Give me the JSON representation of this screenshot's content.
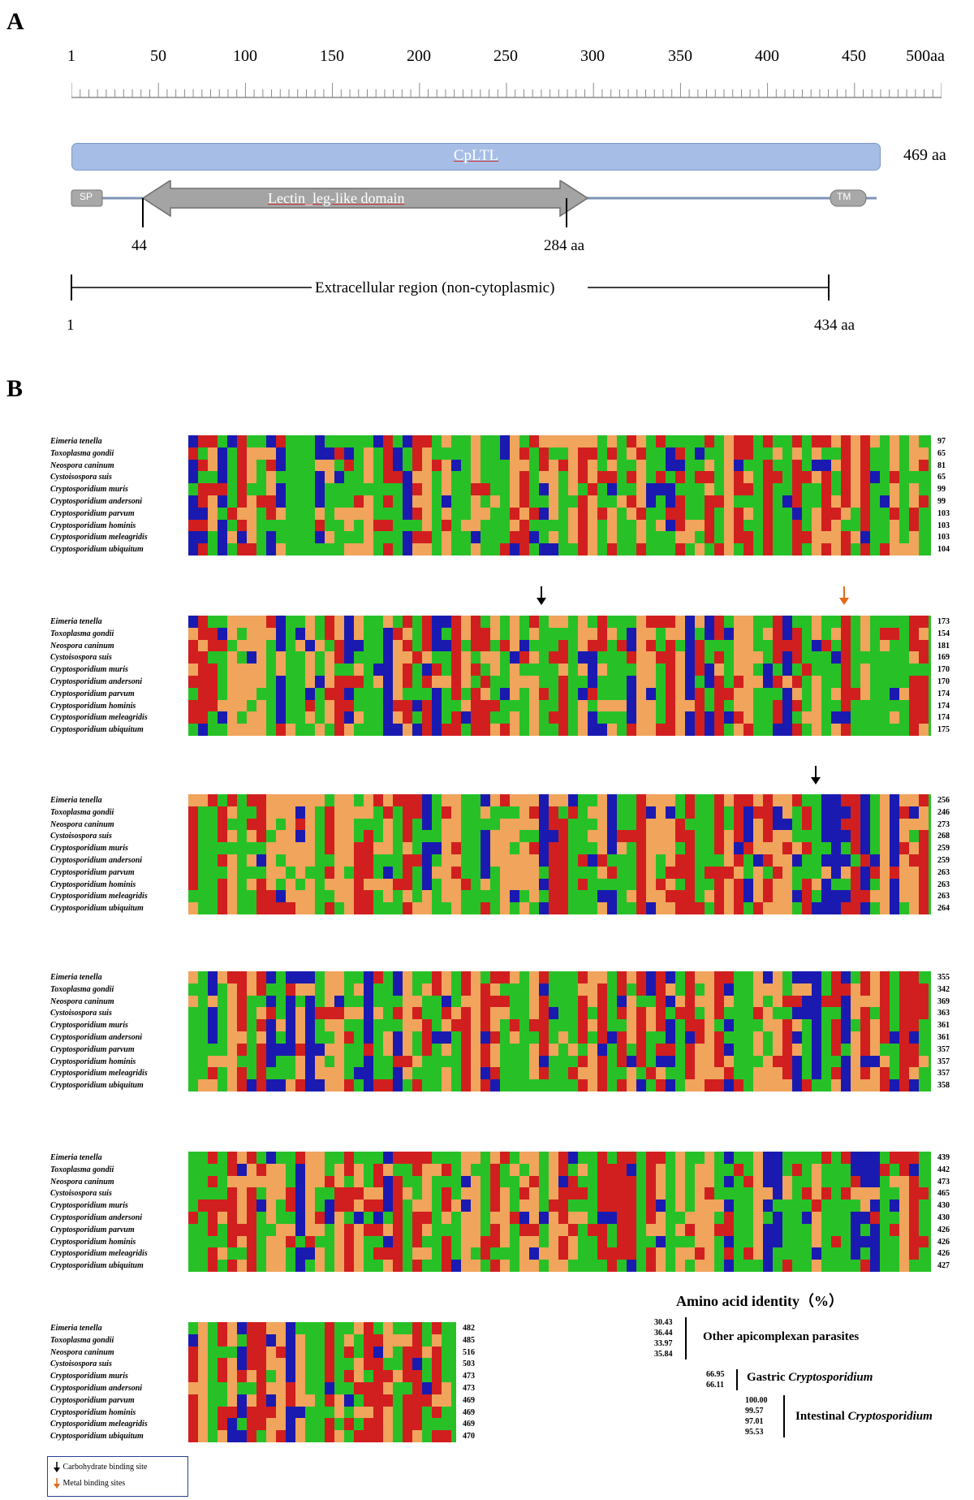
{
  "panel_a": {
    "letter": "A",
    "scale_ticks": [
      "1",
      "50",
      "100",
      "150",
      "200",
      "250",
      "300",
      "350",
      "400",
      "450",
      "500aa"
    ],
    "protein_name": "CpLTL",
    "protein_length": "469 aa",
    "sp_label": "SP",
    "domain_label": "Lectin_leg-like domain",
    "tm_label": "TM",
    "domain_start": "44",
    "domain_end": "284 aa",
    "extracellular_label": "Extracellular region (non-cytoplasmic)",
    "extracellular_start": "1",
    "extracellular_end": "434 aa"
  },
  "panel_b": {
    "letter": "B",
    "species": [
      "Eimeria tenella",
      "Toxoplasma gondii",
      "Neospora caninum",
      "Cystoisospora suis",
      "Cryptosporidium muris",
      "Cryptosporidium andersoni",
      "Cryptosporidium parvum",
      "Cryptosporidium hominis",
      "Cryptosporidium meleagridis",
      "Cryptosporidium ubiquitum"
    ],
    "blocks": [
      {
        "numbers": [
          "97",
          "65",
          "81",
          "65",
          "99",
          "99",
          "103",
          "103",
          "103",
          "104"
        ]
      },
      {
        "numbers": [
          "173",
          "154",
          "181",
          "169",
          "170",
          "170",
          "174",
          "174",
          "174",
          "175"
        ]
      },
      {
        "numbers": [
          "256",
          "246",
          "273",
          "268",
          "259",
          "259",
          "263",
          "263",
          "263",
          "264"
        ]
      },
      {
        "numbers": [
          "355",
          "342",
          "369",
          "363",
          "361",
          "361",
          "357",
          "357",
          "357",
          "358"
        ]
      },
      {
        "numbers": [
          "439",
          "442",
          "473",
          "465",
          "430",
          "430",
          "426",
          "426",
          "426",
          "427"
        ]
      },
      {
        "numbers": [
          "482",
          "485",
          "516",
          "503",
          "473",
          "473",
          "469",
          "469",
          "469",
          "470"
        ]
      }
    ],
    "identity": {
      "title": "Amino acid identity（%）",
      "other": {
        "values": [
          "30.43",
          "36.44",
          "33.97",
          "35.84"
        ],
        "label": "Other apicomplexan parasites"
      },
      "gastric": {
        "values": [
          "66.95",
          "66.11"
        ],
        "label_prefix": "Gastric ",
        "label_genus": "Cryptosporidium"
      },
      "intestinal": {
        "values": [
          "100.00",
          "99.57",
          "97.01",
          "95.53"
        ],
        "label_prefix": "Intestinal ",
        "label_genus": "Cryptosporidium"
      }
    },
    "legend": {
      "carbohydrate": "Carbohydrate binding site",
      "metal": "Metal binding sites"
    },
    "colors": {
      "green": "#27c127",
      "red": "#d11f1f",
      "orange": "#f0a45c",
      "blue": "#1a1ab0",
      "arrow_black": "#000000",
      "arrow_orange": "#e06a1a"
    }
  }
}
